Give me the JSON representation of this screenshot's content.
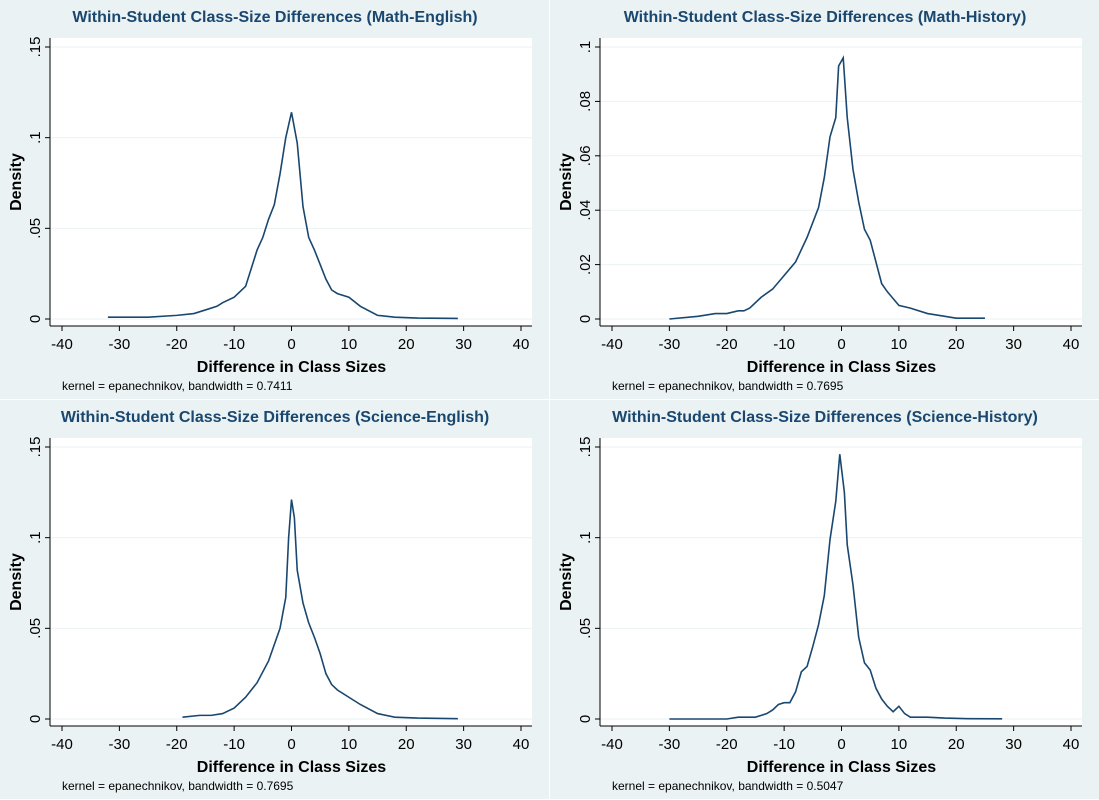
{
  "chart_data": [
    {
      "type": "line",
      "title": "Within-Student Class-Size Differences (Math-English)",
      "x_label": "Difference in Class Sizes",
      "y_label": "Density",
      "note": "kernel = epanechnikov, bandwidth = 0.7411",
      "color": "#1a476f",
      "grid": true,
      "xlim": [
        -40,
        40
      ],
      "xticks": [
        -40,
        -30,
        -20,
        -10,
        0,
        10,
        20,
        30,
        40
      ],
      "ylim": [
        0,
        0.15
      ],
      "yticks": [
        0,
        {
          "value": 0.05,
          "label": ".05"
        },
        {
          "value": 0.1,
          "label": ".1"
        },
        {
          "value": 0.15,
          "label": ".15"
        }
      ],
      "x": [
        -32,
        -25,
        -20,
        -17,
        -15,
        -13,
        -12,
        -10,
        -8,
        -7,
        -6,
        -5,
        -4,
        -3,
        -2,
        -1,
        0,
        1,
        2,
        3,
        4,
        5,
        6,
        7,
        8,
        10,
        12,
        15,
        18,
        22,
        29
      ],
      "values": [
        0.001,
        0.001,
        0.002,
        0.003,
        0.005,
        0.007,
        0.009,
        0.012,
        0.018,
        0.028,
        0.038,
        0.045,
        0.055,
        0.063,
        0.08,
        0.1,
        0.114,
        0.097,
        0.062,
        0.045,
        0.038,
        0.03,
        0.022,
        0.016,
        0.014,
        0.012,
        0.007,
        0.002,
        0.001,
        0.0005,
        0.0003
      ]
    },
    {
      "type": "line",
      "title": "Within-Student Class-Size Differences (Math-History)",
      "x_label": "Difference in Class Sizes",
      "y_label": "Density",
      "note": "kernel = epanechnikov, bandwidth = 0.7695",
      "color": "#1a476f",
      "grid": true,
      "xlim": [
        -40,
        40
      ],
      "xticks": [
        -40,
        -30,
        -20,
        -10,
        0,
        10,
        20,
        30,
        40
      ],
      "ylim": [
        0,
        0.1
      ],
      "yticks": [
        0,
        {
          "value": 0.02,
          "label": ".02"
        },
        {
          "value": 0.04,
          "label": ".04"
        },
        {
          "value": 0.06,
          "label": ".06"
        },
        {
          "value": 0.08,
          "label": ".08"
        },
        {
          "value": 0.1,
          "label": ".1"
        }
      ],
      "x": [
        -30,
        -25,
        -22,
        -20,
        -18,
        -17,
        -16,
        -14,
        -12,
        -10,
        -8,
        -6,
        -4,
        -3,
        -2,
        -1,
        -0.5,
        0.3,
        1,
        2,
        3,
        4,
        5,
        6,
        7,
        8,
        10,
        12,
        15,
        18,
        20,
        25
      ],
      "values": [
        0,
        0.001,
        0.002,
        0.002,
        0.003,
        0.003,
        0.004,
        0.008,
        0.011,
        0.016,
        0.021,
        0.03,
        0.041,
        0.052,
        0.067,
        0.074,
        0.093,
        0.096,
        0.074,
        0.055,
        0.043,
        0.033,
        0.029,
        0.021,
        0.013,
        0.01,
        0.005,
        0.004,
        0.002,
        0.001,
        0.0003,
        0.0003
      ]
    },
    {
      "type": "line",
      "title": "Within-Student Class-Size Differences (Science-English)",
      "x_label": "Difference in Class Sizes",
      "y_label": "Density",
      "note": "kernel = epanechnikov, bandwidth = 0.7695",
      "color": "#1a476f",
      "grid": true,
      "xlim": [
        -40,
        40
      ],
      "xticks": [
        -40,
        -30,
        -20,
        -10,
        0,
        10,
        20,
        30,
        40
      ],
      "ylim": [
        0,
        0.15
      ],
      "yticks": [
        0,
        {
          "value": 0.05,
          "label": ".05"
        },
        {
          "value": 0.1,
          "label": ".1"
        },
        {
          "value": 0.15,
          "label": ".15"
        }
      ],
      "x": [
        -19,
        -16,
        -15,
        -14,
        -12,
        -10,
        -8,
        -6,
        -4,
        -2,
        -1,
        -0.5,
        0,
        0.5,
        1,
        2,
        3,
        4,
        5,
        6,
        7,
        8,
        10,
        12,
        15,
        18,
        22,
        29
      ],
      "values": [
        0.001,
        0.002,
        0.002,
        0.002,
        0.003,
        0.006,
        0.012,
        0.02,
        0.032,
        0.05,
        0.067,
        0.1,
        0.121,
        0.111,
        0.082,
        0.064,
        0.053,
        0.045,
        0.036,
        0.025,
        0.019,
        0.016,
        0.012,
        0.008,
        0.003,
        0.001,
        0.0005,
        0.0002
      ]
    },
    {
      "type": "line",
      "title": "Within-Student Class-Size Differences (Science-History)",
      "x_label": "Difference in Class Sizes",
      "y_label": "Density",
      "note": "kernel = epanechnikov, bandwidth = 0.5047",
      "color": "#1a476f",
      "grid": true,
      "xlim": [
        -40,
        40
      ],
      "xticks": [
        -40,
        -30,
        -20,
        -10,
        0,
        10,
        20,
        30,
        40
      ],
      "ylim": [
        0,
        0.15
      ],
      "yticks": [
        0,
        {
          "value": 0.05,
          "label": ".05"
        },
        {
          "value": 0.1,
          "label": ".1"
        },
        {
          "value": 0.15,
          "label": ".15"
        }
      ],
      "x": [
        -30,
        -20,
        -18,
        -15,
        -13,
        -12,
        -11,
        -10,
        -9,
        -8,
        -7,
        -6,
        -5,
        -4,
        -3,
        -2,
        -1,
        -0.3,
        0.5,
        1,
        2,
        3,
        4,
        5,
        6,
        7,
        8,
        9,
        10,
        11,
        12,
        15,
        18,
        22,
        28
      ],
      "values": [
        0,
        0,
        0.001,
        0.001,
        0.003,
        0.005,
        0.008,
        0.009,
        0.009,
        0.015,
        0.026,
        0.029,
        0.04,
        0.052,
        0.068,
        0.099,
        0.12,
        0.146,
        0.125,
        0.096,
        0.074,
        0.045,
        0.031,
        0.027,
        0.017,
        0.011,
        0.007,
        0.004,
        0.007,
        0.003,
        0.001,
        0.001,
        0.0005,
        0.0002,
        0.0001
      ]
    }
  ]
}
